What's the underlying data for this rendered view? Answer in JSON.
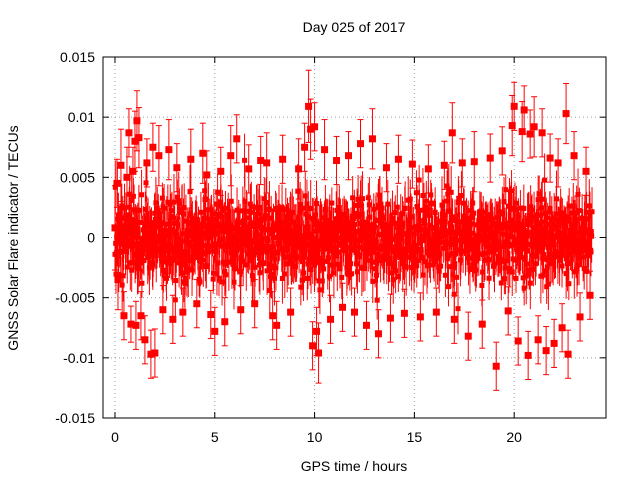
{
  "chart_data": {
    "type": "scatter",
    "title": "Day 025 of 2017",
    "xlabel": "GPS time / hours",
    "ylabel": "GNSS Solar Flare indicator / TECUs",
    "xlim": [
      -0.6,
      24.6
    ],
    "ylim": [
      -0.015,
      0.015
    ],
    "xticks": [
      0,
      5,
      10,
      15,
      20
    ],
    "xtick_labels": [
      "0",
      "5",
      "10",
      "15",
      "20"
    ],
    "yticks": [
      -0.015,
      -0.01,
      -0.005,
      0,
      0.005,
      0.01,
      0.015
    ],
    "ytick_labels": [
      "-0.015",
      "-0.01",
      "-0.005",
      "0",
      "0.005",
      "0.01",
      "0.015"
    ],
    "grid": true,
    "series": [
      {
        "color": "#ff0000",
        "marker": "square",
        "error_bars": true,
        "points": [
          [
            0.0,
            0.0008,
            0.0035
          ],
          [
            0.1,
            0.0045,
            0.002
          ],
          [
            0.15,
            -0.0035,
            0.0025
          ],
          [
            0.3,
            0.006,
            0.003
          ],
          [
            0.45,
            -0.0065,
            0.002
          ],
          [
            0.6,
            0.005,
            0.0025
          ],
          [
            0.7,
            0.0087,
            0.002
          ],
          [
            0.8,
            -0.0072,
            0.0015
          ],
          [
            0.9,
            0.0055,
            0.002
          ],
          [
            1.0,
            0.008,
            0.0025
          ],
          [
            1.05,
            -0.0073,
            0.002
          ],
          [
            1.1,
            0.0097,
            0.0025
          ],
          [
            1.2,
            0.0083,
            0.0025
          ],
          [
            1.3,
            -0.0065,
            0.002
          ],
          [
            1.5,
            -0.0085,
            0.002
          ],
          [
            1.6,
            0.0062,
            0.002
          ],
          [
            1.8,
            -0.0097,
            0.002
          ],
          [
            1.9,
            0.0075,
            0.002
          ],
          [
            2.0,
            -0.0096,
            0.002
          ],
          [
            2.2,
            0.0068,
            0.0025
          ],
          [
            2.4,
            -0.006,
            0.002
          ],
          [
            2.7,
            0.0073,
            0.0025
          ],
          [
            2.9,
            -0.0068,
            0.002
          ],
          [
            3.1,
            0.0058,
            0.002
          ],
          [
            3.4,
            -0.0062,
            0.002
          ],
          [
            3.8,
            0.0065,
            0.0025
          ],
          [
            4.1,
            -0.0055,
            0.002
          ],
          [
            4.4,
            0.007,
            0.0025
          ],
          [
            4.6,
            0.0052,
            0.002
          ],
          [
            4.8,
            -0.0064,
            0.002
          ],
          [
            5.0,
            -0.0078,
            0.002
          ],
          [
            5.3,
            0.0055,
            0.002
          ],
          [
            5.5,
            -0.007,
            0.002
          ],
          [
            5.8,
            0.0068,
            0.0025
          ],
          [
            6.1,
            0.0082,
            0.002
          ],
          [
            6.3,
            -0.006,
            0.002
          ],
          [
            6.7,
            0.0057,
            0.002
          ],
          [
            7.0,
            -0.0055,
            0.002
          ],
          [
            7.3,
            0.0064,
            0.002
          ],
          [
            7.6,
            0.0062,
            0.0025
          ],
          [
            7.9,
            -0.0065,
            0.002
          ],
          [
            8.1,
            -0.0073,
            0.002
          ],
          [
            8.4,
            0.0065,
            0.002
          ],
          [
            8.8,
            -0.0062,
            0.002
          ],
          [
            9.2,
            0.0057,
            0.0025
          ],
          [
            9.5,
            0.0075,
            0.002
          ],
          [
            9.7,
            0.0109,
            0.003
          ],
          [
            9.8,
            0.009,
            0.0025
          ],
          [
            9.9,
            -0.009,
            0.002
          ],
          [
            10.0,
            0.0092,
            0.002
          ],
          [
            10.1,
            -0.0078,
            0.002
          ],
          [
            10.2,
            -0.0096,
            0.0025
          ],
          [
            10.5,
            0.0073,
            0.0025
          ],
          [
            10.8,
            -0.0068,
            0.002
          ],
          [
            11.1,
            0.0064,
            0.002
          ],
          [
            11.4,
            -0.0058,
            0.002
          ],
          [
            11.7,
            0.0068,
            0.002
          ],
          [
            12.0,
            -0.0062,
            0.002
          ],
          [
            12.3,
            0.0078,
            0.002
          ],
          [
            12.6,
            -0.0073,
            0.002
          ],
          [
            12.9,
            0.0082,
            0.0025
          ],
          [
            13.2,
            -0.008,
            0.002
          ],
          [
            13.6,
            0.0058,
            0.002
          ],
          [
            13.8,
            -0.0067,
            0.002
          ],
          [
            14.2,
            0.0065,
            0.002
          ],
          [
            14.5,
            -0.0063,
            0.002
          ],
          [
            14.9,
            0.0061,
            0.002
          ],
          [
            15.3,
            -0.0066,
            0.002
          ],
          [
            15.7,
            0.0057,
            0.002
          ],
          [
            16.1,
            -0.0062,
            0.002
          ],
          [
            16.5,
            0.006,
            0.002
          ],
          [
            16.9,
            0.0087,
            0.0025
          ],
          [
            17.0,
            -0.0068,
            0.002
          ],
          [
            17.4,
            0.0062,
            0.002
          ],
          [
            17.7,
            -0.0082,
            0.002
          ],
          [
            18.0,
            0.0063,
            0.0025
          ],
          [
            18.4,
            -0.0072,
            0.002
          ],
          [
            18.8,
            0.0066,
            0.002
          ],
          [
            19.1,
            -0.0107,
            0.002
          ],
          [
            19.4,
            0.0072,
            0.002
          ],
          [
            19.7,
            -0.0061,
            0.002
          ],
          [
            19.9,
            0.0093,
            0.0025
          ],
          [
            20.0,
            0.0109,
            0.002
          ],
          [
            20.2,
            -0.0086,
            0.002
          ],
          [
            20.4,
            0.0088,
            0.0025
          ],
          [
            20.5,
            0.0106,
            0.002
          ],
          [
            20.7,
            -0.0098,
            0.002
          ],
          [
            20.8,
            0.0086,
            0.002
          ],
          [
            21.0,
            0.0092,
            0.0025
          ],
          [
            21.2,
            -0.0085,
            0.002
          ],
          [
            21.4,
            0.0087,
            0.002
          ],
          [
            21.6,
            -0.0094,
            0.002
          ],
          [
            21.8,
            0.0066,
            0.002
          ],
          [
            22.0,
            -0.0088,
            0.002
          ],
          [
            22.2,
            0.0062,
            0.002
          ],
          [
            22.4,
            -0.0075,
            0.002
          ],
          [
            22.6,
            0.0103,
            0.0025
          ],
          [
            22.7,
            -0.0097,
            0.002
          ],
          [
            23.0,
            0.0068,
            0.002
          ],
          [
            23.3,
            -0.0066,
            0.002
          ],
          [
            23.6,
            0.0055,
            0.002
          ],
          [
            23.8,
            -0.0048,
            0.002
          ]
        ]
      }
    ],
    "noise_band": {
      "x_start": 0.0,
      "x_end": 23.9,
      "y_low": -0.006,
      "y_high": 0.006,
      "dense_sigma": 0.0025,
      "color": "#ff0000"
    }
  }
}
